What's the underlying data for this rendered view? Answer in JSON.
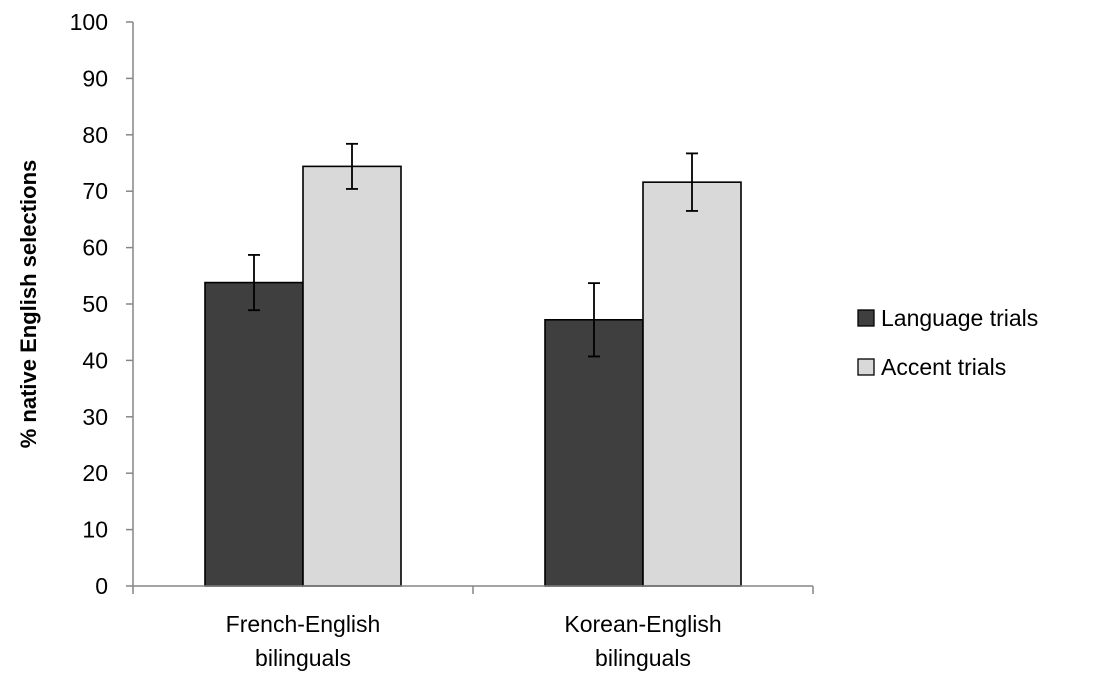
{
  "chart_data": {
    "type": "bar",
    "title": "",
    "xlabel": "",
    "ylabel": "% native English selections",
    "ylim": [
      0,
      100
    ],
    "yticks": [
      0,
      10,
      20,
      30,
      40,
      50,
      60,
      70,
      80,
      90,
      100
    ],
    "categories": [
      [
        "French-English",
        "bilinguals"
      ],
      [
        "Korean-English",
        "bilinguals"
      ]
    ],
    "series": [
      {
        "name": "Language trials",
        "color": "#3f3f3f",
        "values": [
          53.8,
          47.2
        ],
        "errors": [
          4.9,
          6.5
        ]
      },
      {
        "name": "Accent trials",
        "color": "#d9d9d9",
        "values": [
          74.4,
          71.6
        ],
        "errors": [
          4.0,
          5.1
        ]
      }
    ],
    "grid": false,
    "legend_position": "right"
  }
}
